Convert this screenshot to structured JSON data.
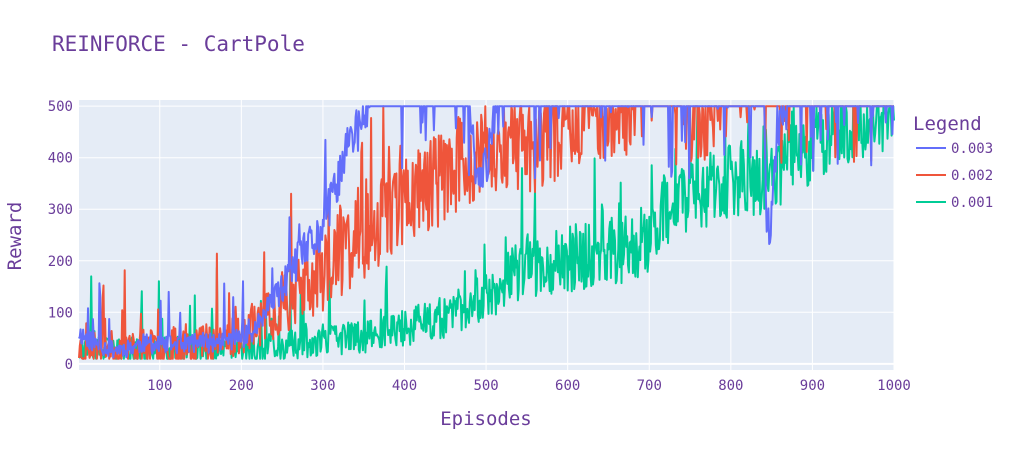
{
  "chart_data": {
    "type": "line",
    "title": "REINFORCE - CartPole",
    "xlabel": "Episodes",
    "ylabel": "Reward",
    "xlim": [
      1,
      1000
    ],
    "ylim": [
      -12,
      512
    ],
    "xticks": [
      100,
      200,
      300,
      400,
      500,
      600,
      700,
      800,
      900,
      1000
    ],
    "yticks": [
      0,
      100,
      200,
      300,
      400,
      500
    ],
    "grid": true,
    "plot_background": "#e5ecf6",
    "legend": {
      "title": "Legend",
      "placement": "right"
    },
    "series": [
      {
        "name": "0.003",
        "color": "#636efa",
        "anchors": [
          [
            1,
            60
          ],
          [
            20,
            40
          ],
          [
            40,
            28
          ],
          [
            60,
            30
          ],
          [
            80,
            40
          ],
          [
            100,
            35
          ],
          [
            120,
            38
          ],
          [
            140,
            40
          ],
          [
            160,
            40
          ],
          [
            180,
            45
          ],
          [
            200,
            50
          ],
          [
            215,
            60
          ],
          [
            225,
            90
          ],
          [
            240,
            120
          ],
          [
            255,
            160
          ],
          [
            270,
            200
          ],
          [
            285,
            230
          ],
          [
            300,
            260
          ],
          [
            315,
            340
          ],
          [
            330,
            420
          ],
          [
            345,
            460
          ],
          [
            355,
            490
          ],
          [
            360,
            500
          ],
          [
            480,
            500
          ],
          [
            490,
            350
          ],
          [
            500,
            380
          ],
          [
            510,
            480
          ],
          [
            520,
            500
          ],
          [
            840,
            500
          ],
          [
            845,
            250
          ],
          [
            850,
            300
          ],
          [
            860,
            480
          ],
          [
            870,
            500
          ],
          [
            1000,
            500
          ]
        ],
        "noise": 45,
        "seed": 11
      },
      {
        "name": "0.002",
        "color": "#ef553b",
        "anchors": [
          [
            1,
            30
          ],
          [
            40,
            28
          ],
          [
            80,
            30
          ],
          [
            120,
            35
          ],
          [
            160,
            45
          ],
          [
            200,
            55
          ],
          [
            230,
            90
          ],
          [
            260,
            130
          ],
          [
            290,
            160
          ],
          [
            320,
            210
          ],
          [
            350,
            260
          ],
          [
            380,
            300
          ],
          [
            410,
            330
          ],
          [
            440,
            360
          ],
          [
            470,
            390
          ],
          [
            500,
            400
          ],
          [
            520,
            430
          ],
          [
            550,
            420
          ],
          [
            580,
            440
          ],
          [
            600,
            470
          ],
          [
            620,
            490
          ],
          [
            700,
            500
          ],
          [
            740,
            500
          ],
          [
            760,
            460
          ],
          [
            780,
            490
          ],
          [
            800,
            500
          ],
          [
            1000,
            500
          ]
        ],
        "noise": 95,
        "seed": 23
      },
      {
        "name": "0.001",
        "color": "#00cc96",
        "anchors": [
          [
            1,
            25
          ],
          [
            100,
            25
          ],
          [
            200,
            30
          ],
          [
            260,
            35
          ],
          [
            300,
            45
          ],
          [
            350,
            55
          ],
          [
            400,
            70
          ],
          [
            450,
            90
          ],
          [
            500,
            130
          ],
          [
            520,
            160
          ],
          [
            550,
            190
          ],
          [
            580,
            200
          ],
          [
            620,
            210
          ],
          [
            660,
            220
          ],
          [
            700,
            250
          ],
          [
            720,
            300
          ],
          [
            750,
            330
          ],
          [
            780,
            340
          ],
          [
            800,
            350
          ],
          [
            820,
            340
          ],
          [
            850,
            370
          ],
          [
            880,
            400
          ],
          [
            910,
            440
          ],
          [
            940,
            460
          ],
          [
            970,
            480
          ],
          [
            1000,
            490
          ]
        ],
        "noise": 75,
        "seed": 37
      }
    ]
  }
}
